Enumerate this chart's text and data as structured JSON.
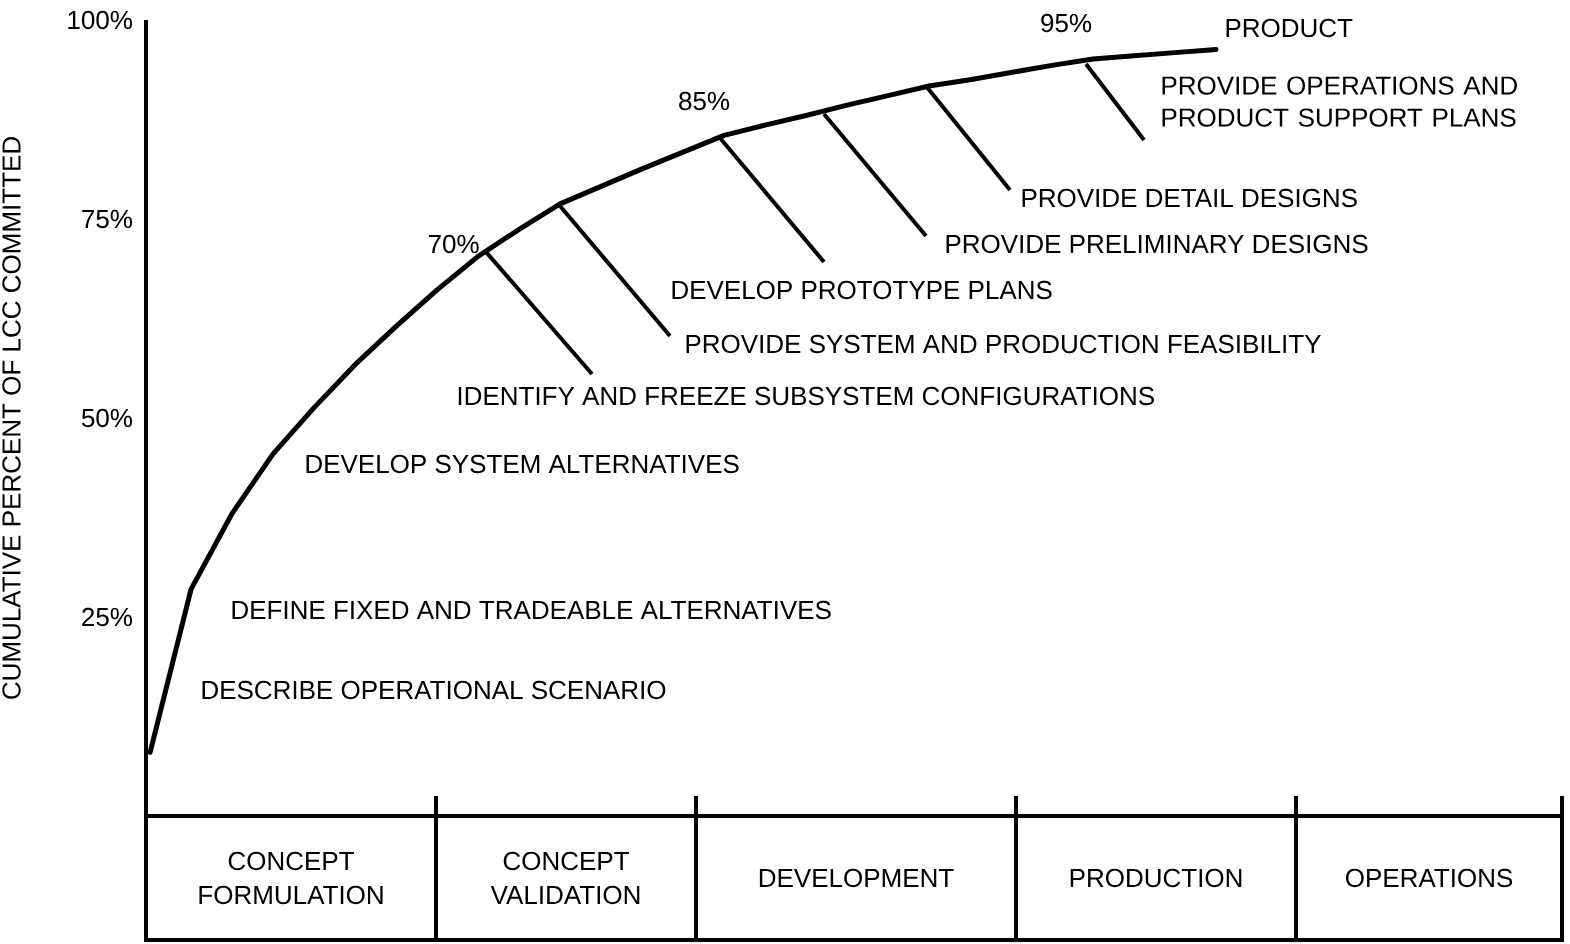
{
  "chart_data": {
    "type": "line",
    "ylabel": "CUMULATIVE PERCENT OF LCC COMMITTED",
    "categories": [
      null,
      null,
      null,
      null,
      null,
      null,
      null,
      null,
      null,
      null,
      null,
      null,
      null,
      null,
      null,
      null,
      null,
      null,
      null,
      null,
      null,
      null,
      null,
      null,
      null,
      null,
      null,
      null,
      null,
      null,
      null,
      null,
      null,
      null,
      null
    ],
    "values": [
      8,
      28.5,
      38,
      45.5,
      51.3,
      56.7,
      61.5,
      66.1,
      70.3,
      73.7,
      76.9,
      79.1,
      81.3,
      83.4,
      85.5,
      86.8,
      88,
      89.3,
      90.5,
      91.7,
      92.5,
      93.4,
      94.3,
      95.1,
      95.5,
      95.9,
      96.3,
      null,
      null,
      null,
      null,
      null,
      null,
      null,
      null
    ],
    "color": "#000000",
    "marker": "none",
    "line_style": "solid",
    "ylim": [
      0,
      100
    ],
    "yticks": [
      {
        "value": 25,
        "label": "25%"
      },
      {
        "value": 50,
        "label": "50%"
      },
      {
        "value": 75,
        "label": "75%"
      },
      {
        "value": 100,
        "label": "100%"
      }
    ],
    "tick_labels": "y",
    "annotations": [
      "DESCRIBE OPERATIONAL SCENARIO",
      "DEFINE FIXED AND TRADEABLE ALTERNATIVES",
      "DEVELOP SYSTEM ALTERNATIVES",
      "70%",
      "IDENTIFY AND FREEZE SUBSYSTEM CONFIGURATIONS",
      "PROVIDE SYSTEM AND PRODUCTION FEASIBILITY",
      "85%",
      "DEVELOP PROTOTYPE PLANS",
      "PROVIDE PRELIMINARY DESIGNS",
      "PROVIDE DETAIL DESIGNS",
      "95%",
      "PROVIDE OPERATIONS AND PRODUCT SUPPORT PLANS",
      "PRODUCT",
      "CONCEPT FORMULATION",
      "CONCEPT VALIDATION",
      "DEVELOPMENT",
      "PRODUCTION",
      "OPERATIONS"
    ]
  }
}
